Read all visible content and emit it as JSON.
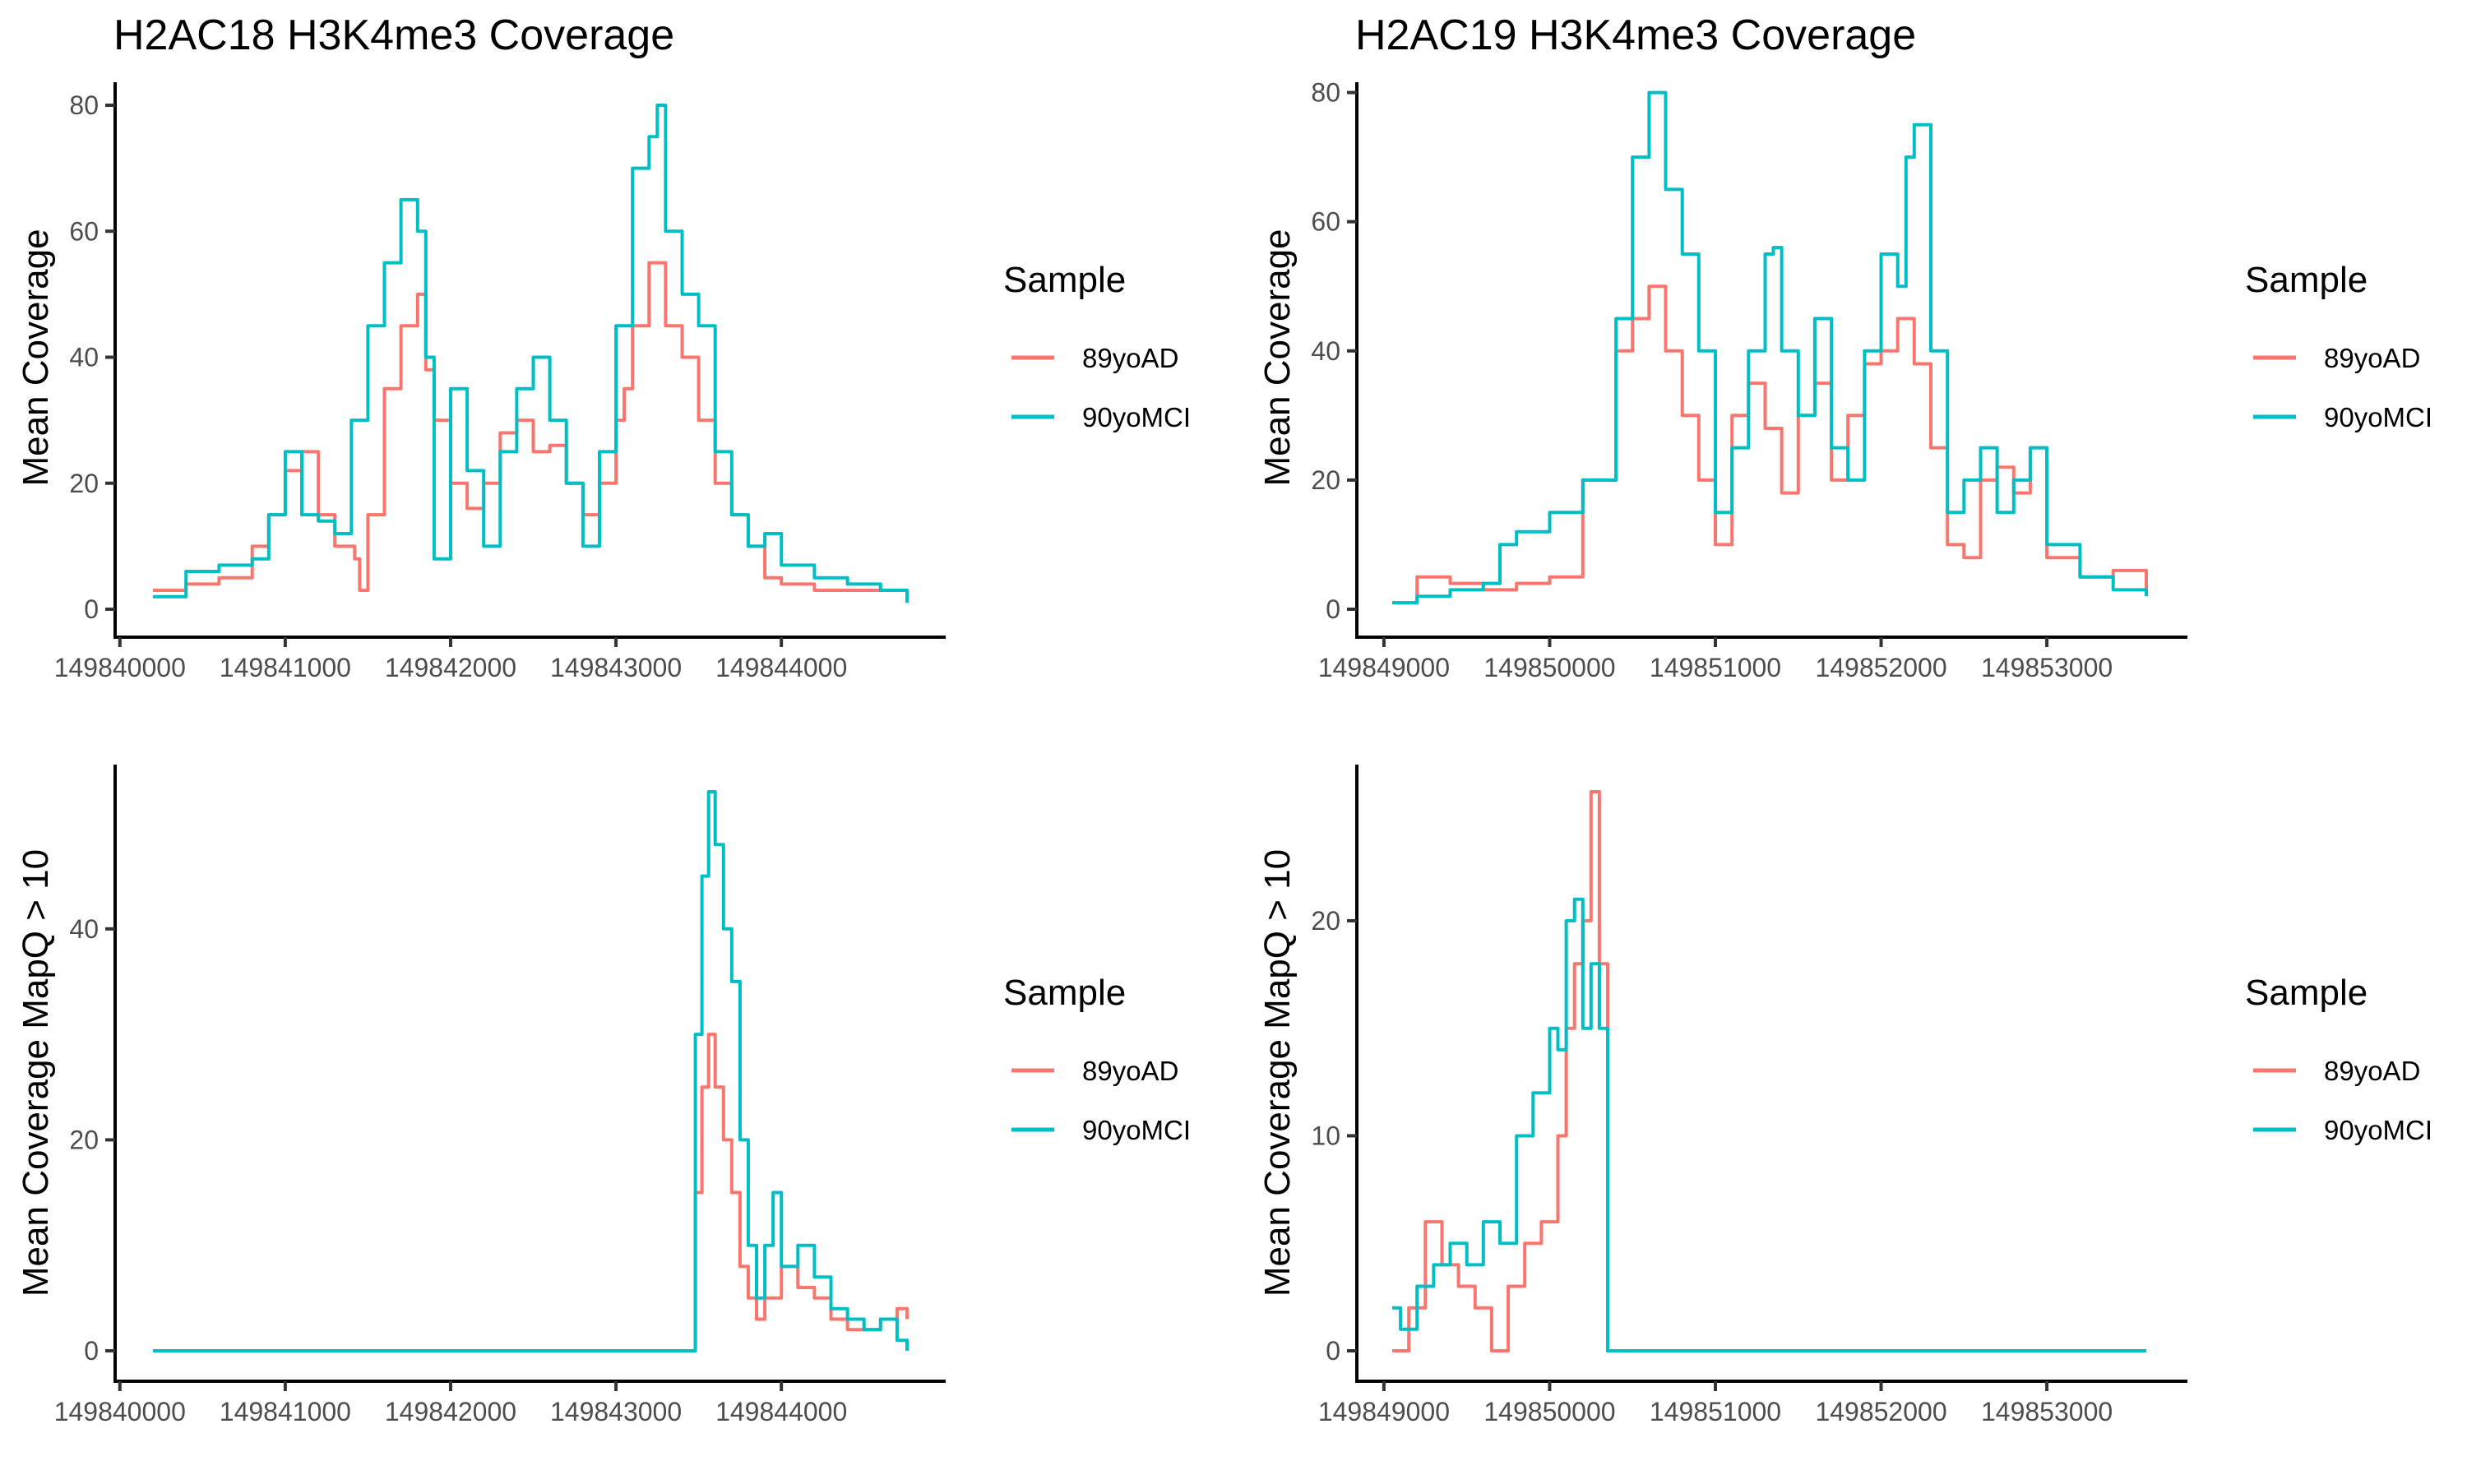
{
  "colors": {
    "89yoAD": "#F8766D",
    "90yoMCI": "#00BFC4"
  },
  "chart_data": [
    {
      "type": "line",
      "title": "H2AC18 H3K4me3 Coverage",
      "xlabel": "",
      "ylabel": "Mean Coverage",
      "xlim": [
        149840200,
        149844760
      ],
      "ylim": [
        0,
        80
      ],
      "xticks": [
        149840000,
        149841000,
        149842000,
        149843000,
        149844000
      ],
      "xtick_labels": [
        "149840000",
        "149841000",
        "149842000",
        "149843000",
        "149844000"
      ],
      "yticks": [
        0,
        20,
        40,
        60,
        80
      ],
      "ytick_labels": [
        "0",
        "20",
        "40",
        "60",
        "80"
      ],
      "grid": false,
      "legend": {
        "title": "Sample",
        "position": "right",
        "entries": [
          "89yoAD",
          "90yoMCI"
        ]
      },
      "series": [
        {
          "name": "89yoAD",
          "x": [
            149840200,
            149840400,
            149840600,
            149840800,
            149840900,
            149841000,
            149841100,
            149841200,
            149841300,
            149841420,
            149841450,
            149841500,
            149841600,
            149841700,
            149841800,
            149841850,
            149841900,
            149842000,
            149842100,
            149842200,
            149842300,
            149842400,
            149842500,
            149842600,
            149842700,
            149842800,
            149842900,
            149843000,
            149843050,
            149843100,
            149843200,
            149843300,
            149843400,
            149843500,
            149843600,
            149843700,
            149843800,
            149843900,
            149844000,
            149844200,
            149844400,
            149844600,
            149844760
          ],
          "values": [
            3,
            4,
            5,
            10,
            15,
            22,
            25,
            15,
            10,
            8,
            3,
            15,
            35,
            45,
            50,
            38,
            30,
            20,
            16,
            20,
            28,
            30,
            25,
            26,
            20,
            15,
            20,
            30,
            35,
            45,
            55,
            45,
            40,
            30,
            20,
            15,
            10,
            5,
            4,
            3,
            3,
            3,
            3
          ]
        },
        {
          "name": "90yoMCI",
          "x": [
            149840200,
            149840400,
            149840600,
            149840800,
            149840900,
            149841000,
            149841100,
            149841200,
            149841300,
            149841400,
            149841500,
            149841600,
            149841700,
            149841800,
            149841850,
            149841900,
            149842000,
            149842100,
            149842200,
            149842300,
            149842400,
            149842500,
            149842600,
            149842700,
            149842800,
            149842900,
            149843000,
            149843100,
            149843200,
            149843250,
            149843300,
            149843400,
            149843500,
            149843600,
            149843700,
            149843800,
            149843900,
            149844000,
            149844200,
            149844400,
            149844600,
            149844760
          ],
          "values": [
            2,
            6,
            7,
            8,
            15,
            25,
            15,
            14,
            12,
            30,
            45,
            55,
            65,
            60,
            40,
            8,
            35,
            22,
            10,
            25,
            35,
            40,
            30,
            20,
            10,
            25,
            45,
            70,
            75,
            80,
            60,
            50,
            45,
            25,
            15,
            10,
            12,
            7,
            5,
            4,
            3,
            1
          ]
        }
      ]
    },
    {
      "type": "line",
      "title": "H2AC19 H3K4me3 Coverage",
      "xlabel": "",
      "ylabel": "Mean Coverage",
      "xlim": [
        149849050,
        149853600
      ],
      "ylim": [
        0,
        83
      ],
      "xticks": [
        149849000,
        149850000,
        149851000,
        149852000,
        149853000
      ],
      "xtick_labels": [
        "149849000",
        "149850000",
        "149851000",
        "149852000",
        "149853000"
      ],
      "yticks": [
        0,
        20,
        40,
        60,
        80
      ],
      "ytick_labels": [
        "0",
        "20",
        "40",
        "60",
        "80"
      ],
      "grid": false,
      "legend": {
        "title": "Sample",
        "position": "right",
        "entries": [
          "89yoAD",
          "90yoMCI"
        ]
      },
      "series": [
        {
          "name": "89yoAD",
          "x": [
            149849050,
            149849200,
            149849400,
            149849600,
            149849800,
            149850000,
            149850200,
            149850400,
            149850500,
            149850600,
            149850700,
            149850800,
            149850900,
            149851000,
            149851100,
            149851200,
            149851300,
            149851400,
            149851500,
            149851600,
            149851700,
            149851800,
            149851900,
            149852000,
            149852100,
            149852200,
            149852300,
            149852400,
            149852500,
            149852600,
            149852700,
            149852800,
            149852900,
            149853000,
            149853200,
            149853400,
            149853600
          ],
          "values": [
            1,
            5,
            4,
            3,
            4,
            5,
            20,
            40,
            45,
            50,
            40,
            30,
            20,
            10,
            30,
            35,
            28,
            18,
            30,
            35,
            20,
            30,
            38,
            40,
            45,
            38,
            25,
            10,
            8,
            20,
            22,
            18,
            25,
            8,
            5,
            6,
            3
          ]
        },
        {
          "name": "90yoMCI",
          "x": [
            149849050,
            149849200,
            149849400,
            149849600,
            149849700,
            149849800,
            149850000,
            149850200,
            149850400,
            149850500,
            149850600,
            149850700,
            149850800,
            149850900,
            149851000,
            149851100,
            149851200,
            149851300,
            149851350,
            149851400,
            149851500,
            149851600,
            149851700,
            149851800,
            149851900,
            149852000,
            149852100,
            149852150,
            149852200,
            149852300,
            149852400,
            149852500,
            149852600,
            149852700,
            149852800,
            149852900,
            149853000,
            149853200,
            149853400,
            149853600
          ],
          "values": [
            1,
            2,
            3,
            4,
            10,
            12,
            15,
            20,
            45,
            70,
            80,
            65,
            55,
            40,
            15,
            25,
            40,
            55,
            56,
            40,
            30,
            45,
            25,
            20,
            40,
            55,
            50,
            70,
            75,
            40,
            15,
            20,
            25,
            15,
            20,
            25,
            10,
            5,
            3,
            2
          ]
        }
      ]
    },
    {
      "type": "line",
      "title": "",
      "xlabel": "",
      "ylabel": "Mean Coverage MapQ > 10",
      "xlim": [
        149840200,
        149844760
      ],
      "ylim": [
        0,
        53
      ],
      "xticks": [
        149840000,
        149841000,
        149842000,
        149843000,
        149844000
      ],
      "xtick_labels": [
        "149840000",
        "149841000",
        "149842000",
        "149843000",
        "149844000"
      ],
      "yticks": [
        0,
        20,
        40
      ],
      "ytick_labels": [
        "0",
        "20",
        "40"
      ],
      "grid": false,
      "legend": {
        "title": "Sample",
        "position": "right",
        "entries": [
          "89yoAD",
          "90yoMCI"
        ]
      },
      "series": [
        {
          "name": "89yoAD",
          "x": [
            149840200,
            149843440,
            149843480,
            149843520,
            149843560,
            149843600,
            149843650,
            149843700,
            149843750,
            149843800,
            149843850,
            149843900,
            149844000,
            149844100,
            149844200,
            149844300,
            149844400,
            149844500,
            149844600,
            149844700,
            149844760
          ],
          "values": [
            0,
            0,
            15,
            25,
            30,
            25,
            20,
            15,
            8,
            5,
            3,
            5,
            8,
            6,
            5,
            3,
            2,
            2,
            3,
            4,
            3
          ]
        },
        {
          "name": "90yoMCI",
          "x": [
            149840200,
            149843440,
            149843480,
            149843520,
            149843560,
            149843600,
            149843650,
            149843700,
            149843750,
            149843800,
            149843850,
            149843900,
            149843950,
            149844000,
            149844100,
            149844200,
            149844300,
            149844400,
            149844500,
            149844600,
            149844700,
            149844760
          ],
          "values": [
            0,
            0,
            30,
            45,
            53,
            48,
            40,
            35,
            20,
            10,
            5,
            10,
            15,
            8,
            10,
            7,
            4,
            3,
            2,
            3,
            1,
            0
          ]
        }
      ]
    },
    {
      "type": "line",
      "title": "",
      "xlabel": "",
      "ylabel": "Mean Coverage MapQ > 10",
      "xlim": [
        149849050,
        149853600
      ],
      "ylim": [
        0,
        26
      ],
      "xticks": [
        149849000,
        149850000,
        149851000,
        149852000,
        149853000
      ],
      "xtick_labels": [
        "149849000",
        "149850000",
        "149851000",
        "149852000",
        "149853000"
      ],
      "yticks": [
        0,
        10,
        20
      ],
      "ytick_labels": [
        "0",
        "10",
        "20"
      ],
      "grid": false,
      "legend": {
        "title": "Sample",
        "position": "right",
        "entries": [
          "89yoAD",
          "90yoMCI"
        ]
      },
      "series": [
        {
          "name": "89yoAD",
          "x": [
            149849050,
            149849150,
            149849250,
            149849350,
            149849450,
            149849550,
            149849650,
            149849750,
            149849850,
            149849950,
            149850050,
            149850100,
            149850150,
            149850200,
            149850250,
            149850300,
            149850350,
            149850400,
            149850600,
            149853600
          ],
          "values": [
            0,
            2,
            6,
            4,
            3,
            2,
            0,
            3,
            5,
            6,
            10,
            15,
            18,
            20,
            26,
            18,
            0,
            0,
            0,
            0
          ]
        },
        {
          "name": "90yoMCI",
          "x": [
            149849050,
            149849100,
            149849200,
            149849300,
            149849400,
            149849500,
            149849600,
            149849700,
            149849800,
            149849900,
            149850000,
            149850050,
            149850100,
            149850150,
            149850200,
            149850250,
            149850300,
            149850350,
            149850400,
            149853600
          ],
          "values": [
            2,
            1,
            3,
            4,
            5,
            4,
            6,
            5,
            10,
            12,
            15,
            14,
            20,
            21,
            15,
            18,
            15,
            0,
            0,
            0
          ]
        }
      ]
    }
  ]
}
